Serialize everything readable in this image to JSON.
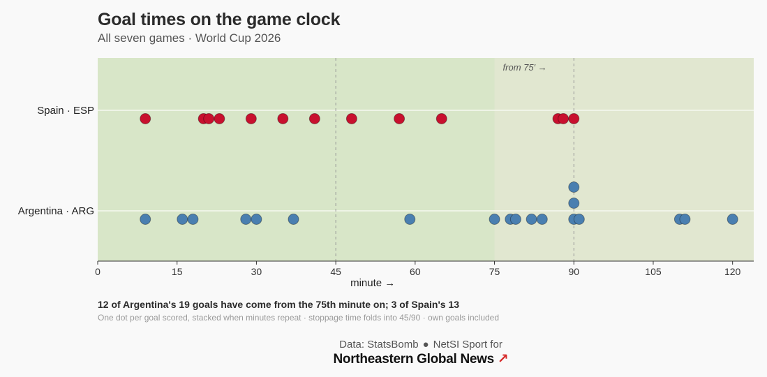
{
  "header": {
    "title": "Goal times on the game clock",
    "subtitle": "All seven games · World Cup 2026"
  },
  "chart_data": {
    "type": "scatter",
    "title": "Goal times on the game clock",
    "subtitle": "All seven games · World Cup 2026",
    "xlabel": "minute →",
    "ylabel": "",
    "xlim": [
      0,
      124
    ],
    "xticks": [
      0,
      15,
      30,
      45,
      60,
      75,
      90,
      105,
      120
    ],
    "reference_lines": [
      45,
      90
    ],
    "highlight_from": 75,
    "highlight_label": "from 75′ →",
    "categories": [
      "Spain · ESP",
      "Argentina · ARG"
    ],
    "series": [
      {
        "name": "Spain · ESP",
        "color": "#c8102e",
        "minutes": [
          9,
          20,
          21,
          23,
          29,
          35,
          41,
          48,
          57,
          65,
          87,
          88,
          90
        ]
      },
      {
        "name": "Argentina · ARG",
        "color": "#4a7fb0",
        "minutes": [
          9,
          16,
          18,
          28,
          30,
          37,
          59,
          75,
          78,
          79,
          82,
          84,
          90,
          90,
          90,
          91,
          110,
          111,
          120
        ]
      }
    ]
  },
  "caption": "12 of Argentina's 19 goals have come from the 75th minute on; 3 of Spain's 13",
  "note": "One dot per goal scored, stacked when minutes repeat · stoppage time folds into 45/90 · own goals included",
  "footer": {
    "credit_source": "Data: StatsBomb",
    "credit_separator": "●",
    "credit_partner": "NetSI Sport for",
    "brand": "Northeastern Global News",
    "brand_arrow": "↗"
  }
}
